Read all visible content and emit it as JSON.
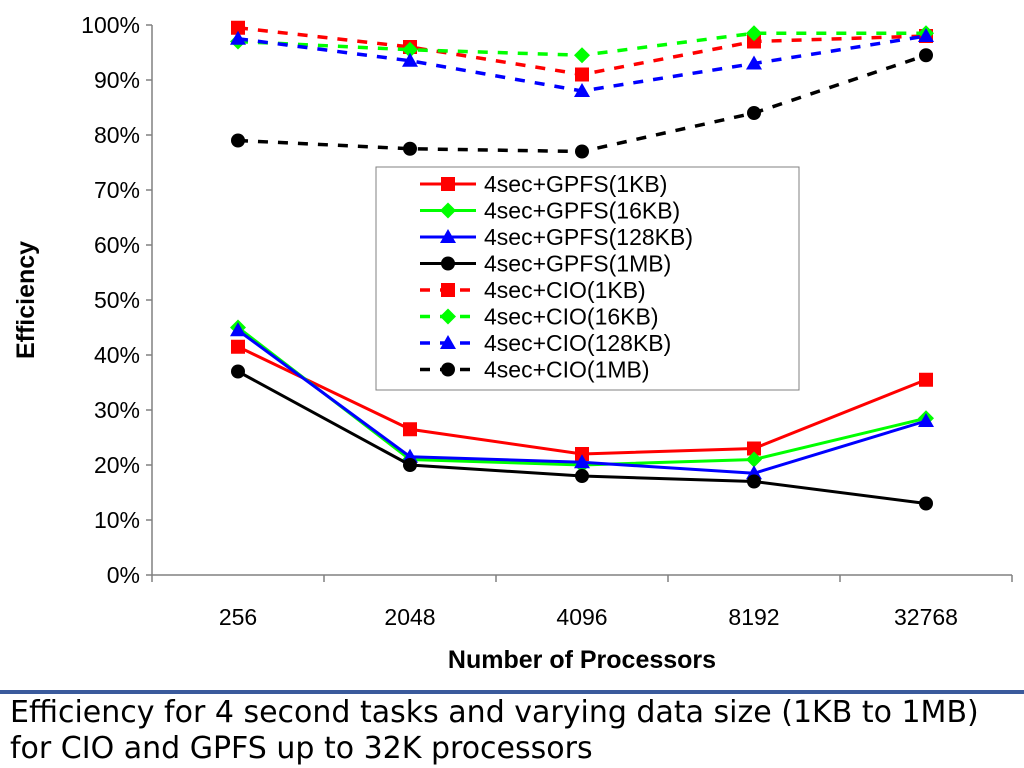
{
  "caption": "Efficiency for 4 second tasks and varying data size (1KB to 1MB) for CIO and GPFS up to 32K processors",
  "chart_data": {
    "type": "line",
    "xlabel": "Number of Processors",
    "ylabel": "Efficiency",
    "categories": [
      "256",
      "2048",
      "4096",
      "8192",
      "32768"
    ],
    "ylim": [
      0,
      100
    ],
    "yticks": [
      "0%",
      "10%",
      "20%",
      "30%",
      "40%",
      "50%",
      "60%",
      "70%",
      "80%",
      "90%",
      "100%"
    ],
    "grid": false,
    "legend_position": "center",
    "series": [
      {
        "name": "4sec+GPFS(1KB)",
        "color": "#ff0000",
        "marker": "square",
        "dashed": false,
        "values": [
          41.5,
          26.5,
          22,
          23,
          35.5
        ]
      },
      {
        "name": "4sec+GPFS(16KB)",
        "color": "#00ff00",
        "marker": "diamond",
        "dashed": false,
        "values": [
          45,
          21,
          20,
          21,
          28.5
        ]
      },
      {
        "name": "4sec+GPFS(128KB)",
        "color": "#0000ff",
        "marker": "triangle",
        "dashed": false,
        "values": [
          44.5,
          21.5,
          20.5,
          18.5,
          28
        ]
      },
      {
        "name": "4sec+GPFS(1MB)",
        "color": "#000000",
        "marker": "circle",
        "dashed": false,
        "values": [
          37,
          20,
          18,
          17,
          13
        ]
      },
      {
        "name": "4sec+CIO(1KB)",
        "color": "#ff0000",
        "marker": "square",
        "dashed": true,
        "values": [
          99.5,
          96,
          91,
          97,
          98
        ]
      },
      {
        "name": "4sec+CIO(16KB)",
        "color": "#00ff00",
        "marker": "diamond",
        "dashed": true,
        "values": [
          97,
          95.5,
          94.5,
          98.5,
          98.5
        ]
      },
      {
        "name": "4sec+CIO(128KB)",
        "color": "#0000ff",
        "marker": "triangle",
        "dashed": true,
        "values": [
          97.5,
          93.5,
          88,
          93,
          98
        ]
      },
      {
        "name": "4sec+CIO(1MB)",
        "color": "#000000",
        "marker": "circle",
        "dashed": true,
        "values": [
          79,
          77.5,
          77,
          84,
          94.5
        ]
      }
    ]
  }
}
